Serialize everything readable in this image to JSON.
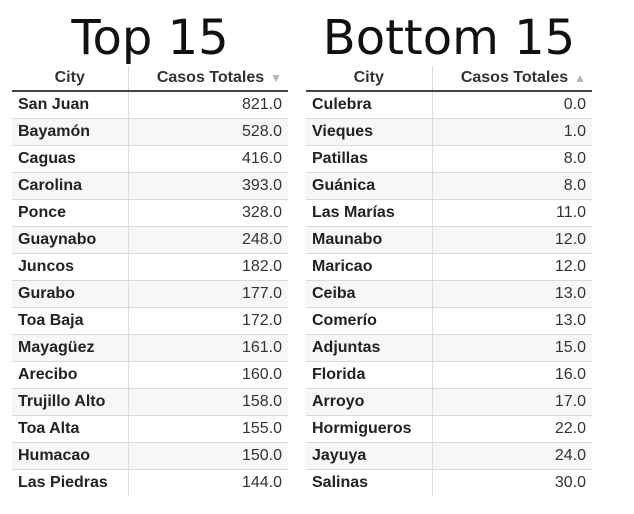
{
  "top": {
    "title": "Top 15",
    "headers": {
      "city": "City",
      "cases": "Casos Totales"
    },
    "sort_icon": "sort-descending-icon",
    "rows": [
      {
        "city": "San Juan",
        "cases": "821.0"
      },
      {
        "city": "Bayamón",
        "cases": "528.0"
      },
      {
        "city": "Caguas",
        "cases": "416.0"
      },
      {
        "city": "Carolina",
        "cases": "393.0"
      },
      {
        "city": "Ponce",
        "cases": "328.0"
      },
      {
        "city": "Guaynabo",
        "cases": "248.0"
      },
      {
        "city": "Juncos",
        "cases": "182.0"
      },
      {
        "city": "Gurabo",
        "cases": "177.0"
      },
      {
        "city": "Toa Baja",
        "cases": "172.0"
      },
      {
        "city": "Mayagüez",
        "cases": "161.0"
      },
      {
        "city": "Arecibo",
        "cases": "160.0"
      },
      {
        "city": "Trujillo Alto",
        "cases": "158.0"
      },
      {
        "city": "Toa Alta",
        "cases": "155.0"
      },
      {
        "city": "Humacao",
        "cases": "150.0"
      },
      {
        "city": "Las Piedras",
        "cases": "144.0"
      }
    ]
  },
  "bottom": {
    "title": "Bottom 15",
    "headers": {
      "city": "City",
      "cases": "Casos Totales"
    },
    "sort_icon": "sort-ascending-icon",
    "rows": [
      {
        "city": "Culebra",
        "cases": "0.0"
      },
      {
        "city": "Vieques",
        "cases": "1.0"
      },
      {
        "city": "Patillas",
        "cases": "8.0"
      },
      {
        "city": "Guánica",
        "cases": "8.0"
      },
      {
        "city": "Las Marías",
        "cases": "11.0"
      },
      {
        "city": "Maunabo",
        "cases": "12.0"
      },
      {
        "city": "Maricao",
        "cases": "12.0"
      },
      {
        "city": "Ceiba",
        "cases": "13.0"
      },
      {
        "city": "Comerío",
        "cases": "13.0"
      },
      {
        "city": "Adjuntas",
        "cases": "15.0"
      },
      {
        "city": "Florida",
        "cases": "16.0"
      },
      {
        "city": "Arroyo",
        "cases": "17.0"
      },
      {
        "city": "Hormigueros",
        "cases": "22.0"
      },
      {
        "city": "Jayuya",
        "cases": "24.0"
      },
      {
        "city": "Salinas",
        "cases": "30.0"
      }
    ]
  }
}
